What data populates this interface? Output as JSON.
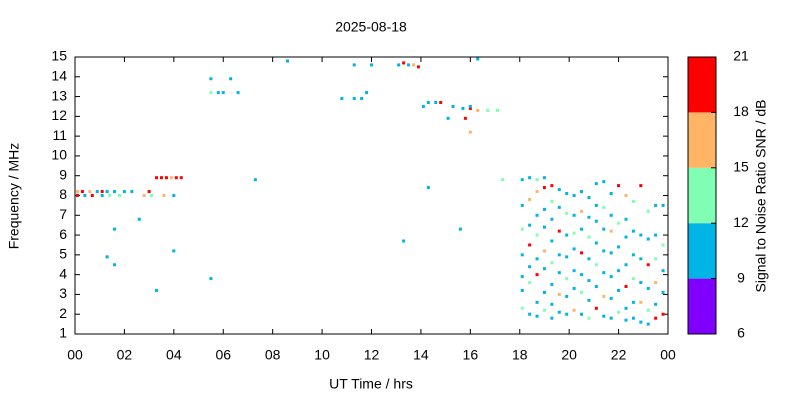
{
  "chart_data": {
    "type": "scatter",
    "title": "2025-08-18",
    "xlabel": "UT Time / hrs",
    "ylabel": "Frequency / MHz",
    "xlim": [
      0,
      24
    ],
    "xticks": [
      {
        "value": 0,
        "label": "00"
      },
      {
        "value": 2,
        "label": "02"
      },
      {
        "value": 4,
        "label": "04"
      },
      {
        "value": 6,
        "label": "06"
      },
      {
        "value": 8,
        "label": "08"
      },
      10,
      12,
      14,
      16,
      18,
      20,
      22,
      {
        "value": 24,
        "label": "00"
      }
    ],
    "ylim": [
      1,
      15
    ],
    "yticks": [
      1,
      2,
      3,
      4,
      5,
      6,
      7,
      8,
      9,
      10,
      11,
      12,
      13,
      14,
      15
    ],
    "colorbar": {
      "label": "Signal to Noise Ratio SNR / dB",
      "lim": [
        6,
        21
      ],
      "ticks": [
        6,
        9,
        12,
        15,
        18,
        21
      ],
      "colors": [
        "#8000ff",
        "#00b4e6",
        "#80ffb4",
        "#ffb466",
        "#ff0000"
      ]
    },
    "x": [
      0.1,
      0.1,
      0.3,
      0.4,
      0.6,
      0.7,
      0.9,
      1.1,
      1.1,
      1.3,
      1.4,
      1.6,
      1.8,
      2.0,
      2.3,
      2.8,
      3.0,
      3.1,
      3.3,
      3.5,
      3.6,
      3.7,
      3.9,
      4.0,
      4.1,
      4.3,
      1.3,
      1.6,
      1.6,
      2.6,
      4.0,
      3.3,
      5.5,
      5.5,
      5.5,
      5.8,
      6.0,
      6.3,
      6.6,
      7.3,
      8.6,
      10.8,
      11.3,
      11.3,
      11.6,
      11.8,
      12.0,
      13.1,
      13.3,
      13.5,
      13.7,
      13.9,
      13.3,
      14.3,
      14.1,
      14.3,
      14.6,
      14.8,
      15.1,
      15.3,
      15.6,
      15.8,
      16.0,
      16.0,
      16.0,
      16.3,
      16.3,
      16.7,
      17.1,
      17.3,
      15.7,
      18.1,
      18.1,
      18.1,
      18.1,
      18.1,
      18.1,
      18.1,
      18.4,
      18.4,
      18.4,
      18.4,
      18.4,
      18.4,
      18.4,
      18.7,
      18.7,
      18.7,
      18.7,
      18.7,
      18.7,
      18.7,
      18.7,
      19.0,
      19.0,
      19.0,
      19.0,
      19.0,
      19.0,
      19.0,
      19.0,
      19.3,
      19.3,
      19.3,
      19.3,
      19.3,
      19.3,
      19.3,
      19.3,
      19.6,
      19.6,
      19.6,
      19.6,
      19.6,
      19.6,
      19.6,
      19.9,
      19.9,
      19.9,
      19.9,
      19.9,
      19.9,
      19.9,
      20.2,
      20.2,
      20.2,
      20.2,
      20.2,
      20.2,
      20.2,
      20.5,
      20.5,
      20.5,
      20.5,
      20.5,
      20.5,
      20.5,
      20.8,
      20.8,
      20.8,
      20.8,
      20.8,
      20.8,
      20.8,
      21.1,
      21.1,
      21.1,
      21.1,
      21.1,
      21.1,
      21.1,
      21.4,
      21.4,
      21.4,
      21.4,
      21.4,
      21.4,
      21.4,
      21.7,
      21.7,
      21.7,
      21.7,
      21.7,
      21.7,
      21.7,
      22.0,
      22.0,
      22.0,
      22.0,
      22.0,
      22.0,
      22.3,
      22.3,
      22.3,
      22.3,
      22.3,
      22.3,
      22.3,
      22.6,
      22.6,
      22.6,
      22.6,
      22.6,
      22.6,
      22.9,
      22.9,
      22.9,
      22.9,
      22.9,
      22.9,
      23.2,
      23.2,
      23.2,
      23.2,
      23.2,
      23.2,
      23.5,
      23.5,
      23.5,
      23.5,
      23.5,
      23.5,
      23.8,
      23.8,
      23.8,
      23.8,
      23.8
    ],
    "y": [
      8.2,
      8.0,
      8.2,
      8.0,
      8.2,
      8.0,
      8.2,
      8.2,
      8.0,
      8.2,
      8.0,
      8.2,
      8.0,
      8.2,
      8.2,
      8.0,
      8.2,
      8.0,
      8.9,
      8.9,
      8.0,
      8.9,
      8.9,
      8.0,
      8.9,
      8.9,
      4.9,
      4.5,
      6.3,
      6.8,
      5.2,
      3.2,
      3.8,
      13.9,
      13.2,
      13.2,
      13.2,
      13.9,
      13.2,
      8.8,
      14.8,
      12.9,
      14.6,
      12.9,
      12.9,
      13.2,
      14.6,
      14.6,
      14.7,
      14.6,
      14.6,
      14.5,
      5.7,
      8.4,
      12.5,
      12.7,
      12.7,
      12.7,
      11.9,
      12.5,
      6.3,
      11.9,
      12.4,
      12.5,
      11.2,
      12.3,
      14.9,
      12.3,
      12.3,
      8.8,
      12.4,
      8.8,
      7.5,
      6.3,
      5.0,
      3.9,
      3.2,
      2.3,
      8.9,
      7.8,
      6.5,
      5.5,
      4.4,
      3.6,
      2.0,
      8.8,
      8.2,
      7.0,
      6.0,
      4.8,
      4.0,
      2.6,
      1.9,
      8.9,
      8.4,
      7.3,
      6.4,
      5.2,
      4.3,
      3.1,
      2.2,
      8.5,
      7.7,
      6.8,
      5.7,
      4.6,
      3.5,
      2.5,
      1.8,
      8.3,
      7.4,
      6.2,
      5.0,
      4.1,
      3.0,
      2.1,
      8.1,
      7.1,
      6.0,
      4.9,
      3.8,
      2.9,
      2.0,
      8.0,
      7.0,
      6.1,
      5.3,
      4.2,
      3.3,
      2.2,
      8.2,
      7.2,
      6.3,
      5.1,
      4.0,
      3.1,
      2.0,
      7.9,
      6.9,
      5.9,
      4.8,
      3.7,
      2.7,
      1.8,
      8.6,
      7.5,
      6.7,
      5.6,
      4.5,
      3.4,
      2.3,
      8.7,
      7.4,
      6.3,
      5.2,
      4.1,
      2.9,
      1.9,
      8.1,
      7.0,
      6.2,
      5.1,
      3.9,
      2.8,
      1.8,
      8.5,
      6.6,
      5.4,
      4.2,
      3.2,
      2.1,
      8.0,
      6.8,
      5.9,
      4.5,
      3.4,
      2.3,
      1.7,
      7.7,
      6.2,
      5.0,
      3.8,
      2.6,
      1.8,
      8.5,
      6.0,
      4.8,
      3.6,
      2.6,
      1.6,
      7.2,
      5.8,
      4.5,
      3.3,
      2.2,
      1.5,
      7.5,
      6.0,
      4.8,
      3.6,
      2.5,
      1.8,
      7.5,
      5.5,
      4.2,
      3.1,
      2.0
    ],
    "snr": [
      15,
      19,
      19,
      10,
      16,
      19,
      10,
      19,
      10,
      10,
      13,
      10,
      13,
      10,
      10,
      16,
      19,
      13,
      19,
      19,
      16,
      19,
      16,
      10,
      19,
      19,
      10,
      10,
      10,
      10,
      10,
      10,
      10,
      10,
      13,
      10,
      10,
      10,
      10,
      10,
      10,
      10,
      10,
      10,
      10,
      10,
      10,
      10,
      19,
      10,
      16,
      19,
      10,
      10,
      10,
      10,
      10,
      19,
      10,
      10,
      10,
      19,
      19,
      10,
      16,
      16,
      10,
      13,
      13,
      13,
      10,
      10,
      10,
      13,
      10,
      10,
      10,
      13,
      10,
      16,
      10,
      19,
      10,
      13,
      10,
      13,
      16,
      10,
      13,
      10,
      19,
      10,
      10,
      10,
      19,
      10,
      10,
      16,
      10,
      10,
      13,
      19,
      13,
      10,
      10,
      13,
      10,
      10,
      10,
      10,
      10,
      19,
      10,
      10,
      16,
      10,
      10,
      13,
      10,
      10,
      13,
      10,
      10,
      10,
      10,
      13,
      10,
      10,
      10,
      16,
      10,
      16,
      10,
      19,
      10,
      13,
      10,
      10,
      10,
      13,
      10,
      10,
      10,
      13,
      10,
      10,
      10,
      10,
      13,
      10,
      19,
      10,
      13,
      10,
      10,
      10,
      16,
      10,
      10,
      10,
      16,
      10,
      10,
      10,
      10,
      19,
      13,
      10,
      10,
      10,
      13,
      16,
      10,
      10,
      10,
      19,
      10,
      10,
      13,
      10,
      10,
      13,
      10,
      10,
      19,
      10,
      10,
      10,
      16,
      10,
      13,
      10,
      19,
      10,
      13,
      10,
      10,
      10,
      13,
      16,
      10,
      19,
      10,
      13,
      10,
      10,
      19
    ]
  }
}
